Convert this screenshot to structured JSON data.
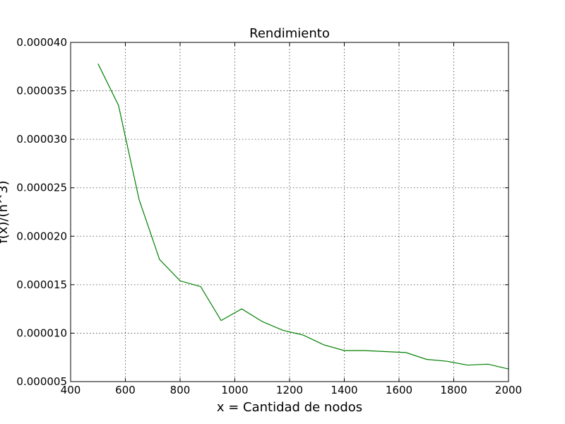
{
  "chart_data": {
    "type": "line",
    "title": "Rendimiento",
    "xlabel": "x = Cantidad de nodos",
    "ylabel": "f(x)/(n^3)",
    "xlim": [
      400,
      2000
    ],
    "ylim": [
      5e-06,
      4e-05
    ],
    "grid": true,
    "x_ticks": [
      "400",
      "600",
      "800",
      "1000",
      "1200",
      "1400",
      "1600",
      "1800",
      "2000"
    ],
    "y_ticks": [
      "0.000005",
      "0.000010",
      "0.000015",
      "0.000020",
      "0.000025",
      "0.000030",
      "0.000035",
      "0.000040"
    ],
    "series": [
      {
        "color": "#008000",
        "x": [
          500,
          575,
          650,
          725,
          800,
          875,
          950,
          1025,
          1100,
          1175,
          1250,
          1325,
          1400,
          1475,
          1550,
          1625,
          1700,
          1775,
          1850,
          1925,
          2000
        ],
        "y": [
          3.78e-05,
          3.35e-05,
          2.38e-05,
          1.76e-05,
          1.54e-05,
          1.48e-05,
          1.13e-05,
          1.25e-05,
          1.12e-05,
          1.03e-05,
          9.8e-06,
          8.8e-06,
          8.2e-06,
          8.2e-06,
          8.1e-06,
          8e-06,
          7.3e-06,
          7.1e-06,
          6.7e-06,
          6.8e-06,
          6.3e-06
        ]
      }
    ]
  }
}
